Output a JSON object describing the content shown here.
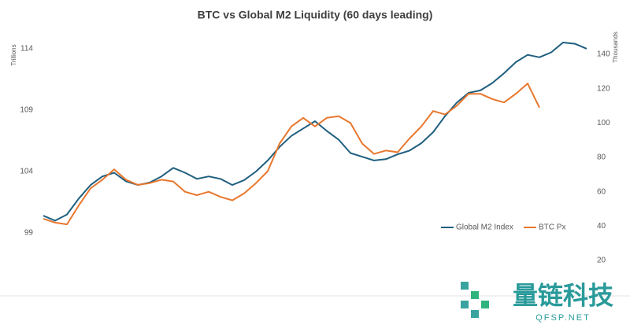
{
  "chart_data": {
    "type": "line",
    "title": "BTC vs Global M2 Liquidity (60 days leading)",
    "y_label": "Trillions",
    "y2_label": "Thousands",
    "ylim": [
      94.9,
      115.4
    ],
    "yticks": [
      99,
      104,
      109,
      114
    ],
    "y2lim": [
      6.7,
      153.3
    ],
    "y2ticks": [
      20,
      40,
      60,
      80,
      100,
      120,
      140
    ],
    "grid": false,
    "legend": "lower right",
    "series": [
      {
        "name": "Global M2 Index",
        "color": "#1f5f7f",
        "values": [
          100.4,
          100.0,
          100.5,
          101.8,
          102.9,
          103.6,
          103.9,
          103.2,
          102.9,
          103.1,
          103.6,
          104.3,
          103.9,
          103.4,
          103.6,
          103.4,
          102.9,
          103.3,
          104.0,
          104.9,
          106.0,
          106.9,
          107.5,
          108.1,
          107.3,
          106.6,
          105.5,
          105.2,
          104.9,
          105.0,
          105.4,
          105.7,
          106.3,
          107.2,
          108.5,
          109.6,
          110.4,
          110.6,
          111.2,
          112.0,
          112.9,
          113.5,
          113.3,
          113.7,
          114.5,
          114.4,
          114.0
        ]
      },
      {
        "name": "BTC Px",
        "color": "#e8772e",
        "axis": "y2",
        "values": [
          44.3,
          42,
          41,
          52,
          62,
          67,
          73,
          67,
          64,
          65,
          67,
          66,
          60,
          58,
          60,
          57,
          55,
          59,
          65,
          72,
          88,
          98,
          103,
          98,
          103,
          104,
          100,
          88,
          82,
          84,
          83,
          91,
          98,
          107,
          105,
          110,
          117,
          117,
          114,
          112,
          117,
          123,
          109,
          null,
          null,
          null,
          null
        ]
      }
    ]
  },
  "watermark": {
    "text": "量链科技",
    "url": "QFSP.NET"
  }
}
